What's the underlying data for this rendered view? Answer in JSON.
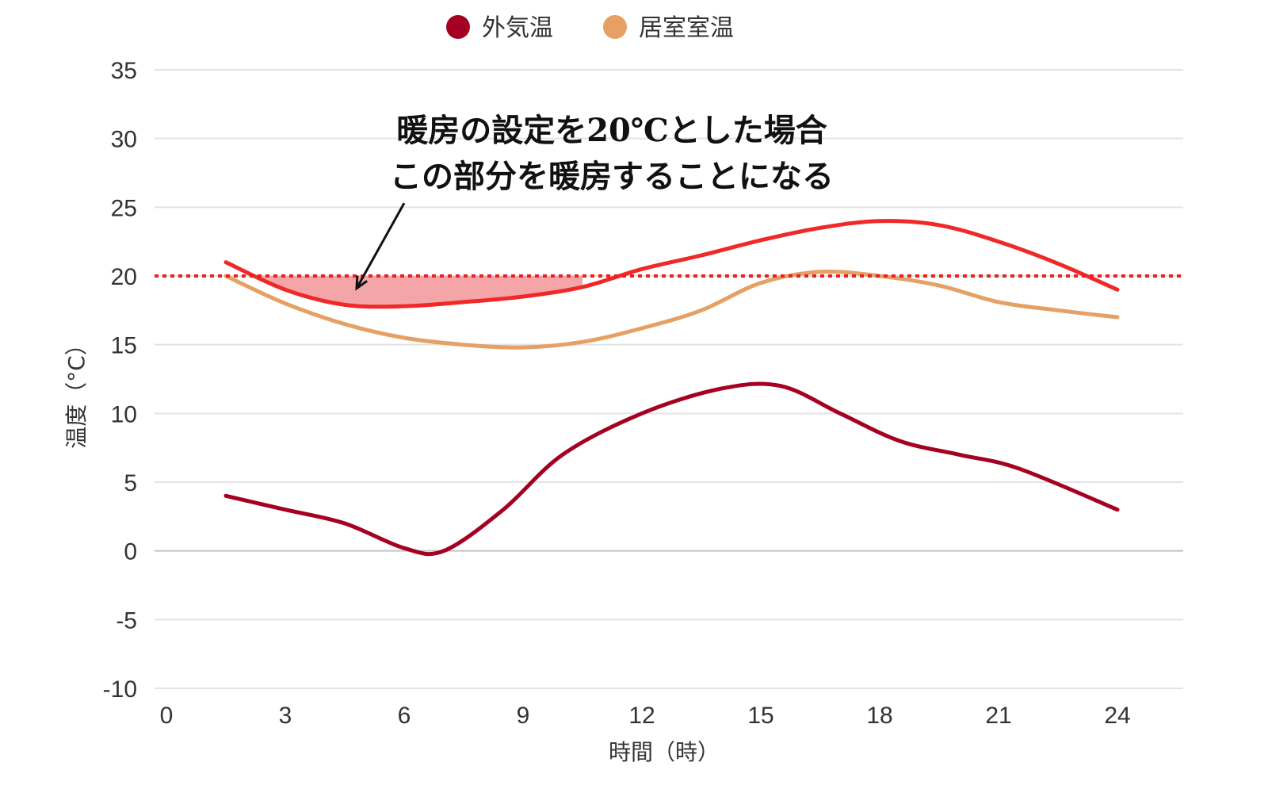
{
  "chart_data": {
    "type": "line",
    "title": "",
    "xlabel": "時間（時）",
    "ylabel": "温度（°C）",
    "x_ticks": [
      0,
      3,
      6,
      9,
      12,
      15,
      18,
      21,
      24
    ],
    "y_ticks": [
      35,
      30,
      25,
      20,
      15,
      10,
      5,
      0,
      -5,
      -10
    ],
    "xlim": [
      0,
      26.4
    ],
    "ylim": [
      -10,
      35
    ],
    "grid": true,
    "legend_position": "top-center",
    "series": [
      {
        "name": "外気温",
        "color": "#a50021",
        "x": [
          1.5,
          3,
          4.5,
          6,
          7,
          8.5,
          10,
          12,
          14,
          15.5,
          17,
          18.5,
          20,
          21.5,
          24
        ],
        "y": [
          4,
          3,
          2,
          0.2,
          0,
          3,
          7,
          10,
          11.8,
          12,
          10,
          8,
          7,
          6,
          3
        ]
      },
      {
        "name": "居室室温",
        "color": "#e6a064",
        "x": [
          1.5,
          3,
          4.5,
          6,
          7.5,
          9,
          10.5,
          12,
          13.5,
          15,
          16.5,
          18,
          19.5,
          21,
          22.5,
          24
        ],
        "y": [
          20,
          18,
          16.5,
          15.5,
          15,
          14.8,
          15.2,
          16.2,
          17.5,
          19.5,
          20.3,
          20,
          19.3,
          18.1,
          17.5,
          17
        ]
      },
      {
        "name": "",
        "color": "#f02828",
        "x": [
          1.5,
          3,
          4.5,
          6,
          7.5,
          9,
          10.5,
          12,
          13.5,
          15,
          16.5,
          18,
          19.5,
          21,
          22.5,
          24
        ],
        "y": [
          21,
          19,
          17.9,
          17.8,
          18.1,
          18.5,
          19.2,
          20.5,
          21.5,
          22.6,
          23.5,
          24,
          23.7,
          22.5,
          20.9,
          19
        ]
      }
    ],
    "reference_line": {
      "y": 20,
      "color": "#e8201e",
      "style": "dotted"
    },
    "shaded_region": {
      "x_from": 2,
      "x_to": 10.5,
      "below": 20,
      "color": "#f4a5a8"
    },
    "annotation": {
      "lines": [
        "暖房の設定を20℃とした場合",
        "この部分を暖房することになる"
      ],
      "arrow_from": [
        6,
        25.3
      ],
      "arrow_to": [
        4.8,
        19.1
      ]
    }
  }
}
